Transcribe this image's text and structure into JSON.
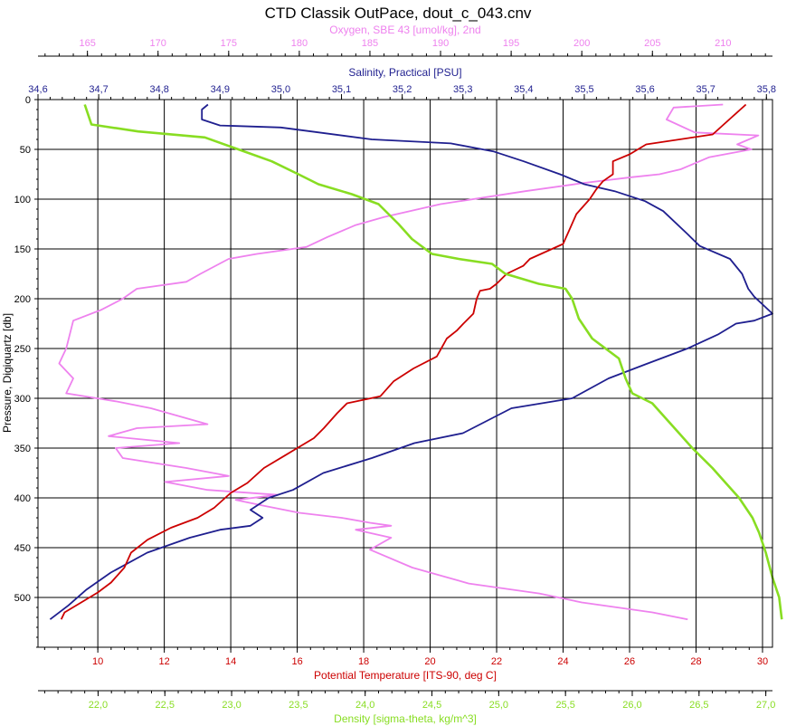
{
  "chart_data": {
    "type": "line",
    "title": "CTD Classik OutPace, dout_c_043.cnv",
    "grid": true,
    "y_axis": {
      "label": "Pressure, Digiquartz [db]",
      "range": [
        0,
        550
      ],
      "inverted": true,
      "ticks": [
        0,
        50,
        100,
        150,
        200,
        250,
        300,
        350,
        400,
        450,
        500
      ],
      "tick_labels": [
        "0",
        "50",
        "100",
        "150",
        "200",
        "250",
        "300",
        "350",
        "400",
        "450",
        "500"
      ]
    },
    "x_axes": [
      {
        "id": "oxygen",
        "label": "Oxygen, SBE 43 [umol/kg], 2nd",
        "color": "#ee82ee",
        "position": "top",
        "range": [
          161.5,
          213.5
        ],
        "ticks": [
          165,
          170,
          175,
          180,
          185,
          190,
          195,
          200,
          205,
          210
        ],
        "tick_labels": [
          "165",
          "170",
          "175",
          "180",
          "185",
          "190",
          "195",
          "200",
          "205",
          "210"
        ]
      },
      {
        "id": "salinity",
        "label": "Salinity, Practical [PSU]",
        "color": "#1f1f8f",
        "position": "top",
        "range": [
          34.6,
          35.81
        ],
        "ticks": [
          34.6,
          34.7,
          34.8,
          34.9,
          35.0,
          35.1,
          35.2,
          35.3,
          35.4,
          35.5,
          35.6,
          35.7,
          35.8
        ],
        "tick_labels": [
          "34,6",
          "34,7",
          "34,8",
          "34,9",
          "35,0",
          "35,1",
          "35,2",
          "35,3",
          "35,4",
          "35,5",
          "35,6",
          "35,7",
          "35,8"
        ]
      },
      {
        "id": "temperature",
        "label": "Potential Temperature [ITS-90, deg C]",
        "color": "#cc0000",
        "position": "bottom",
        "range": [
          8.2,
          30.3
        ],
        "ticks": [
          10,
          12,
          14,
          16,
          18,
          20,
          22,
          24,
          26,
          28,
          30
        ],
        "tick_labels": [
          "10",
          "12",
          "14",
          "16",
          "18",
          "20",
          "22",
          "24",
          "26",
          "28",
          "30"
        ]
      },
      {
        "id": "density",
        "label": "Density [sigma-theta, kg/m^3]",
        "color": "#88dd22",
        "position": "bottom",
        "range": [
          21.55,
          27.05
        ],
        "ticks": [
          22.0,
          22.5,
          23.0,
          23.5,
          24.0,
          24.5,
          25.0,
          25.5,
          26.0,
          26.5,
          27.0
        ],
        "tick_labels": [
          "22,0",
          "22,5",
          "23,0",
          "23,5",
          "24,0",
          "24,5",
          "25,0",
          "25,5",
          "26,0",
          "26,5",
          "27,0"
        ]
      }
    ],
    "series": [
      {
        "axis": "oxygen",
        "color": "#ee82ee",
        "points": [
          [
            210.0,
            5
          ],
          [
            206.5,
            8
          ],
          [
            206.0,
            20
          ],
          [
            208.0,
            33
          ],
          [
            212.5,
            36
          ],
          [
            211.0,
            45
          ],
          [
            212.0,
            50
          ],
          [
            209.0,
            58
          ],
          [
            207.0,
            70
          ],
          [
            205.5,
            75
          ],
          [
            203.5,
            78
          ],
          [
            200.0,
            84
          ],
          [
            196.0,
            92
          ],
          [
            190.0,
            105
          ],
          [
            186.0,
            118
          ],
          [
            184.0,
            126
          ],
          [
            182.0,
            138
          ],
          [
            180.5,
            148
          ],
          [
            177.0,
            155
          ],
          [
            175.0,
            160
          ],
          [
            173.0,
            175
          ],
          [
            172.0,
            183
          ],
          [
            168.5,
            190
          ],
          [
            167.5,
            200
          ],
          [
            166.0,
            211
          ],
          [
            164.0,
            222
          ],
          [
            163.5,
            250
          ],
          [
            163.0,
            265
          ],
          [
            164.0,
            280
          ],
          [
            163.5,
            295
          ],
          [
            167.0,
            303
          ],
          [
            169.5,
            310
          ],
          [
            173.5,
            326
          ],
          [
            168.5,
            330
          ],
          [
            166.5,
            338
          ],
          [
            171.5,
            345
          ],
          [
            167.0,
            350
          ],
          [
            167.5,
            360
          ],
          [
            172.0,
            370
          ],
          [
            175.0,
            378
          ],
          [
            170.5,
            384
          ],
          [
            173.5,
            392
          ],
          [
            178.5,
            397
          ],
          [
            175.5,
            402
          ],
          [
            177.5,
            408
          ],
          [
            180.0,
            415
          ],
          [
            183.0,
            420
          ],
          [
            185.0,
            425
          ],
          [
            186.5,
            428
          ],
          [
            184.0,
            432
          ],
          [
            186.5,
            440
          ],
          [
            185.0,
            452
          ],
          [
            188.0,
            470
          ],
          [
            192.0,
            486
          ],
          [
            197.0,
            496
          ],
          [
            200.0,
            505
          ],
          [
            205.0,
            515
          ],
          [
            207.5,
            522
          ]
        ]
      },
      {
        "axis": "salinity",
        "color": "#1f1f8f",
        "points": [
          [
            34.88,
            5
          ],
          [
            34.87,
            10
          ],
          [
            34.87,
            20
          ],
          [
            34.9,
            26
          ],
          [
            35.0,
            28
          ],
          [
            35.05,
            32
          ],
          [
            35.15,
            40
          ],
          [
            35.28,
            44
          ],
          [
            35.35,
            52
          ],
          [
            35.4,
            62
          ],
          [
            35.46,
            75
          ],
          [
            35.5,
            85
          ],
          [
            35.55,
            92
          ],
          [
            35.6,
            102
          ],
          [
            35.63,
            112
          ],
          [
            35.67,
            135
          ],
          [
            35.69,
            147
          ],
          [
            35.74,
            160
          ],
          [
            35.76,
            175
          ],
          [
            35.77,
            190
          ],
          [
            35.78,
            198
          ],
          [
            35.81,
            215
          ],
          [
            35.78,
            222
          ],
          [
            35.75,
            225
          ],
          [
            35.72,
            236
          ],
          [
            35.67,
            250
          ],
          [
            35.6,
            266
          ],
          [
            35.54,
            280
          ],
          [
            35.48,
            300
          ],
          [
            35.38,
            310
          ],
          [
            35.3,
            335
          ],
          [
            35.22,
            345
          ],
          [
            35.15,
            360
          ],
          [
            35.07,
            375
          ],
          [
            35.02,
            392
          ],
          [
            34.98,
            400
          ],
          [
            34.95,
            412
          ],
          [
            34.97,
            420
          ],
          [
            34.95,
            428
          ],
          [
            34.9,
            432
          ],
          [
            34.85,
            440
          ],
          [
            34.78,
            455
          ],
          [
            34.72,
            475
          ],
          [
            34.68,
            492
          ],
          [
            34.65,
            508
          ],
          [
            34.62,
            522
          ]
        ]
      },
      {
        "axis": "temperature",
        "color": "#cc0000",
        "points": [
          [
            29.5,
            5
          ],
          [
            29.0,
            20
          ],
          [
            28.5,
            35
          ],
          [
            26.5,
            45
          ],
          [
            26.0,
            55
          ],
          [
            25.5,
            62
          ],
          [
            25.5,
            75
          ],
          [
            25.2,
            82
          ],
          [
            25.0,
            90
          ],
          [
            24.8,
            100
          ],
          [
            24.4,
            115
          ],
          [
            24.2,
            130
          ],
          [
            24.0,
            145
          ],
          [
            23.0,
            160
          ],
          [
            22.8,
            167
          ],
          [
            22.3,
            175
          ],
          [
            22.0,
            185
          ],
          [
            21.8,
            190
          ],
          [
            21.5,
            192
          ],
          [
            21.4,
            200
          ],
          [
            21.3,
            215
          ],
          [
            21.0,
            225
          ],
          [
            20.8,
            232
          ],
          [
            20.5,
            240
          ],
          [
            20.2,
            258
          ],
          [
            19.5,
            270
          ],
          [
            18.9,
            283
          ],
          [
            18.5,
            298
          ],
          [
            17.5,
            305
          ],
          [
            17.2,
            315
          ],
          [
            16.8,
            330
          ],
          [
            16.5,
            340
          ],
          [
            16.0,
            350
          ],
          [
            15.6,
            358
          ],
          [
            15.0,
            370
          ],
          [
            14.5,
            385
          ],
          [
            14.0,
            395
          ],
          [
            13.5,
            410
          ],
          [
            13.0,
            420
          ],
          [
            12.2,
            430
          ],
          [
            11.5,
            442
          ],
          [
            11.0,
            455
          ],
          [
            10.8,
            470
          ],
          [
            10.4,
            485
          ],
          [
            10.0,
            495
          ],
          [
            9.5,
            505
          ],
          [
            9.0,
            515
          ],
          [
            8.9,
            522
          ]
        ]
      },
      {
        "axis": "density",
        "color": "#88dd22",
        "points": [
          [
            21.9,
            5
          ],
          [
            21.95,
            25
          ],
          [
            22.3,
            32
          ],
          [
            22.8,
            38
          ],
          [
            23.05,
            50
          ],
          [
            23.3,
            62
          ],
          [
            23.5,
            75
          ],
          [
            23.65,
            85
          ],
          [
            23.9,
            95
          ],
          [
            24.1,
            105
          ],
          [
            24.25,
            125
          ],
          [
            24.35,
            140
          ],
          [
            24.5,
            155
          ],
          [
            24.7,
            160
          ],
          [
            24.95,
            165
          ],
          [
            25.05,
            175
          ],
          [
            25.3,
            185
          ],
          [
            25.5,
            190
          ],
          [
            25.55,
            200
          ],
          [
            25.6,
            220
          ],
          [
            25.7,
            240
          ],
          [
            25.9,
            260
          ],
          [
            25.95,
            280
          ],
          [
            26.0,
            295
          ],
          [
            26.15,
            305
          ],
          [
            26.25,
            320
          ],
          [
            26.35,
            335
          ],
          [
            26.45,
            350
          ],
          [
            26.6,
            370
          ],
          [
            26.7,
            385
          ],
          [
            26.8,
            400
          ],
          [
            26.9,
            420
          ],
          [
            26.95,
            435
          ],
          [
            27.0,
            455
          ],
          [
            27.05,
            480
          ],
          [
            27.1,
            500
          ],
          [
            27.12,
            522
          ]
        ]
      }
    ]
  }
}
